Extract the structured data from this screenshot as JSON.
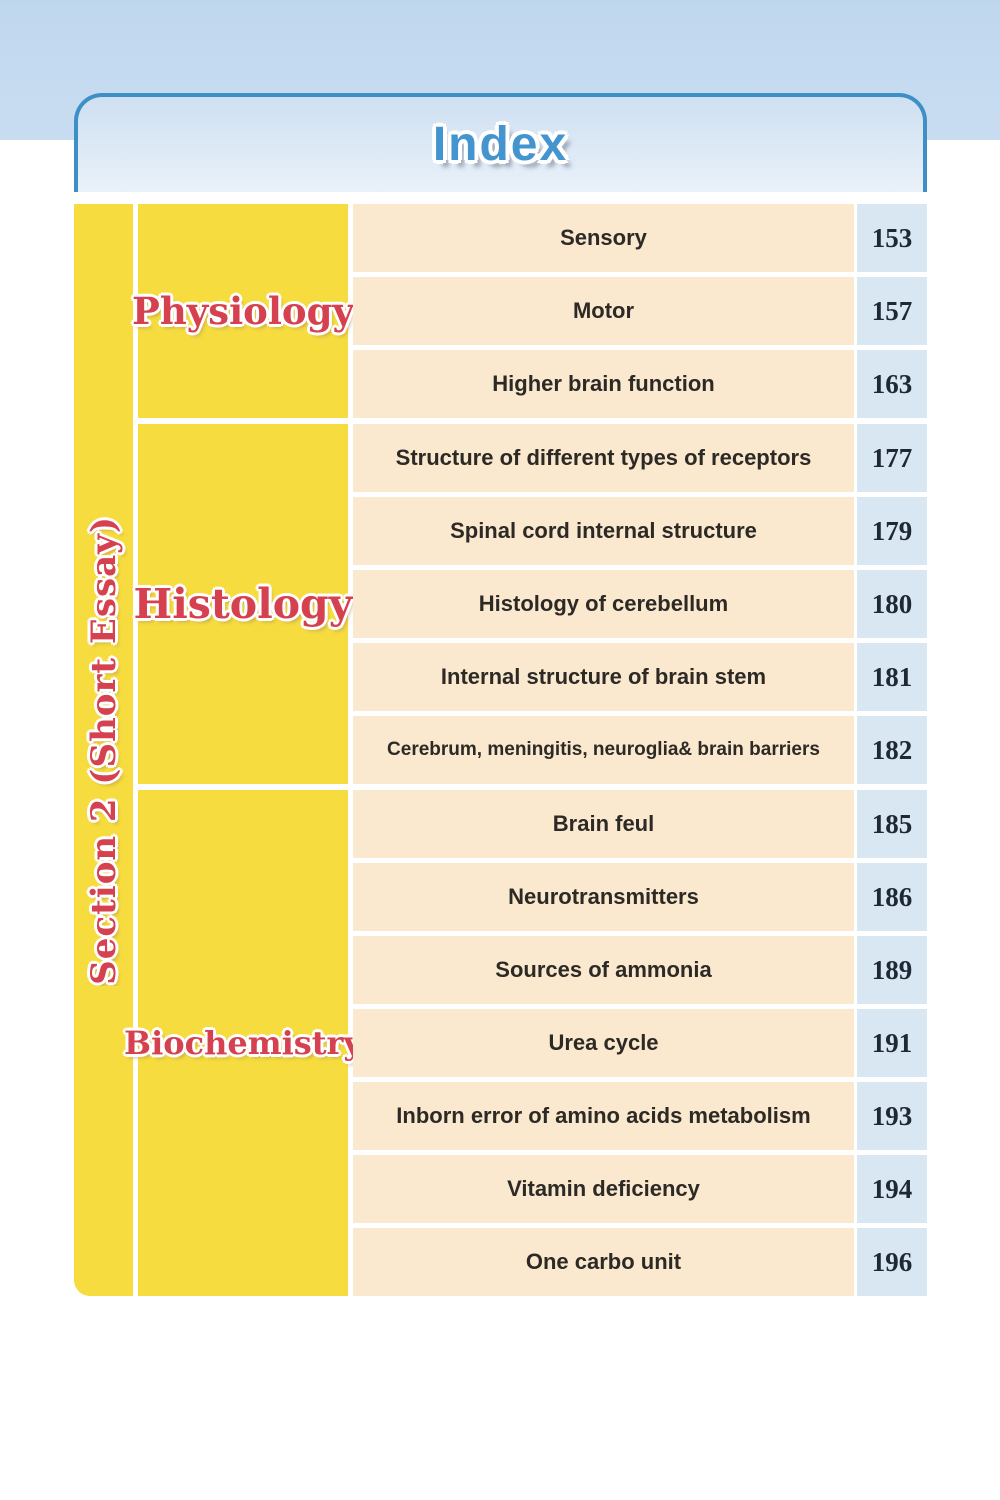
{
  "page": {
    "title": "Index"
  },
  "colors": {
    "header_border": "#3e8fc6",
    "title_blue": "#4494d0",
    "band_blue": "#c9ddf1",
    "subject_yellow": "#f6dc3e",
    "subject_red": "#d5414e",
    "topic_cream": "#fae8cf",
    "page_blue": "#d9e7f3",
    "topic_text": "#2d2a26",
    "page_text": "#1e2836"
  },
  "rail": {
    "label": "Section 2 (Short Essay)"
  },
  "sections": [
    {
      "subject": "Physiology",
      "rows": [
        {
          "topic": "Sensory",
          "page": "153"
        },
        {
          "topic": "Motor",
          "page": "157"
        },
        {
          "topic": "Higher brain function",
          "page": "163"
        }
      ]
    },
    {
      "subject": "Histology",
      "rows": [
        {
          "topic": "Structure of different types of receptors",
          "page": "177"
        },
        {
          "topic": "Spinal cord internal structure",
          "page": "179"
        },
        {
          "topic": "Histology of cerebellum",
          "page": "180"
        },
        {
          "topic": "Internal structure of brain stem",
          "page": "181"
        },
        {
          "topic": "Cerebrum, meningitis, neuroglia& brain barriers",
          "page": "182"
        }
      ]
    },
    {
      "subject": "Biochemistry",
      "rows": [
        {
          "topic": "Brain feul",
          "page": "185"
        },
        {
          "topic": "Neurotransmitters",
          "page": "186"
        },
        {
          "topic": "Sources of ammonia",
          "page": "189"
        },
        {
          "topic": "Urea cycle",
          "page": "191"
        },
        {
          "topic": "Inborn error of amino acids metabolism",
          "page": "193"
        },
        {
          "topic": "Vitamin deficiency",
          "page": "194"
        },
        {
          "topic": "One carbo unit",
          "page": "196"
        }
      ]
    }
  ]
}
